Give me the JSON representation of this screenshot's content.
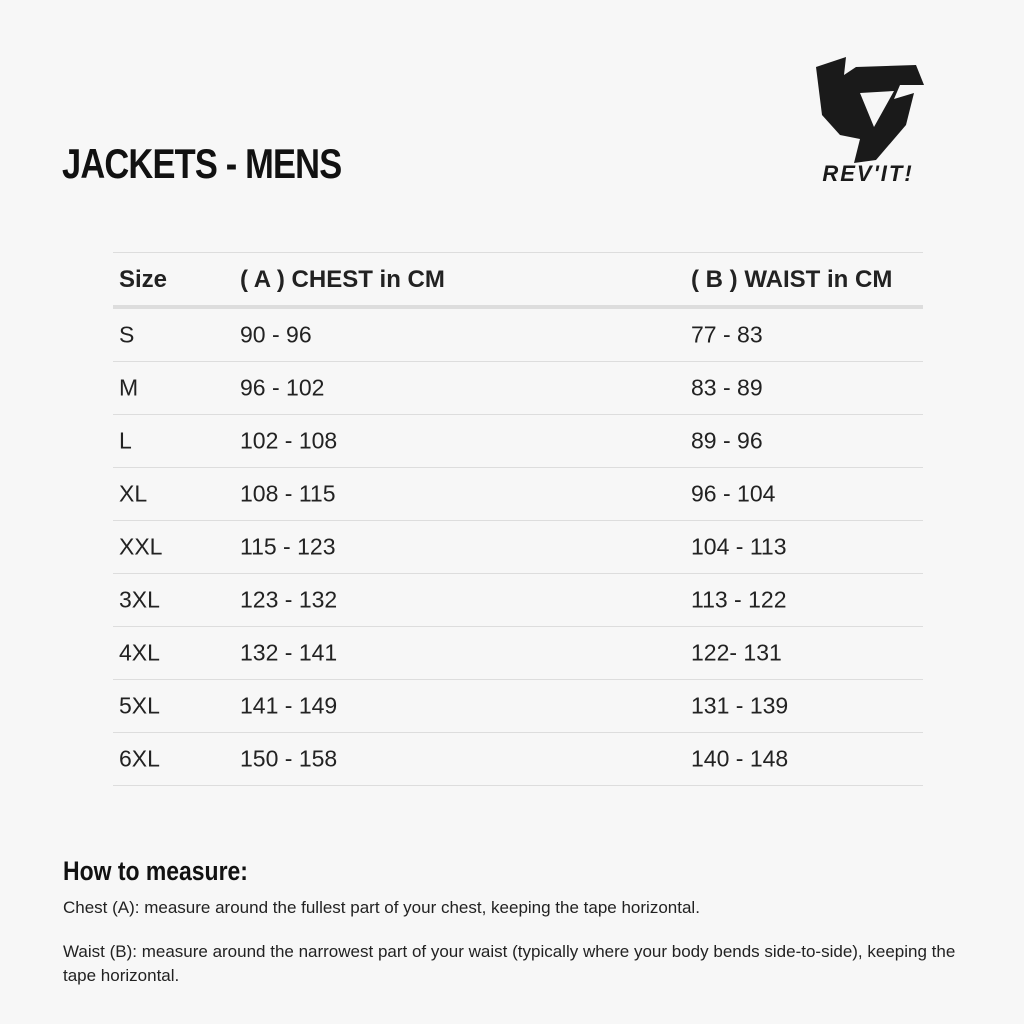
{
  "title": "JACKETS - MENS",
  "logo": {
    "text": "REV'IT!",
    "color": "#1a1a1a"
  },
  "table": {
    "headers": [
      "Size",
      "( A ) CHEST in CM",
      "( B ) WAIST in CM"
    ],
    "rows": [
      [
        "S",
        "90 - 96",
        "77 - 83"
      ],
      [
        "M",
        "96 - 102",
        "83 - 89"
      ],
      [
        "L",
        "102 - 108",
        "89 - 96"
      ],
      [
        "XL",
        "108 - 115",
        "96 - 104"
      ],
      [
        "XXL",
        "115 - 123",
        "104 - 113"
      ],
      [
        "3XL",
        "123 - 132",
        "113 - 122"
      ],
      [
        "4XL",
        "132 - 141",
        "122- 131"
      ],
      [
        "5XL",
        "141 - 149",
        "131 - 139"
      ],
      [
        "6XL",
        "150 - 158",
        "140 - 148"
      ]
    ]
  },
  "how_to_measure": {
    "heading": "How to measure:",
    "chest": "Chest (A): measure around the fullest part of your chest, keeping the tape horizontal.",
    "waist": "Waist (B): measure around the narrowest part of your waist (typically where your body bends side-to-side), keeping the tape horizontal."
  }
}
